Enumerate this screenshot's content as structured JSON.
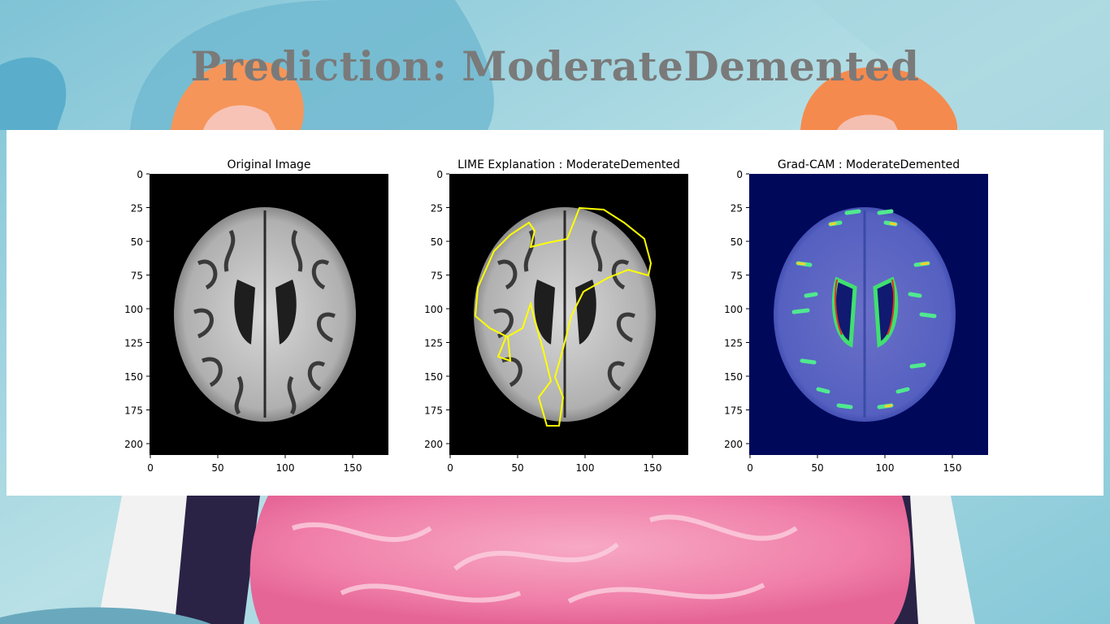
{
  "prediction": {
    "title": "Prediction: ModerateDemented"
  },
  "colors": {
    "background": "#8fcbd9",
    "lime_boundary": "#ffff00",
    "title": "#7a7a7a"
  },
  "panels": [
    {
      "name": "original-image",
      "title": "Original Image",
      "xticks": [
        "0",
        "50",
        "100",
        "150"
      ],
      "yticks": [
        "0",
        "25",
        "50",
        "75",
        "100",
        "125",
        "150",
        "175",
        "200"
      ]
    },
    {
      "name": "lime-explanation",
      "title": "LIME Explanation : ModerateDemented",
      "xticks": [
        "0",
        "50",
        "100",
        "150"
      ],
      "yticks": [
        "0",
        "25",
        "50",
        "75",
        "100",
        "125",
        "150",
        "175",
        "200"
      ]
    },
    {
      "name": "gradcam",
      "title": "Grad-CAM : ModerateDemented",
      "xticks": [
        "0",
        "50",
        "100",
        "150"
      ],
      "yticks": [
        "0",
        "25",
        "50",
        "75",
        "100",
        "125",
        "150",
        "175",
        "200"
      ]
    }
  ]
}
